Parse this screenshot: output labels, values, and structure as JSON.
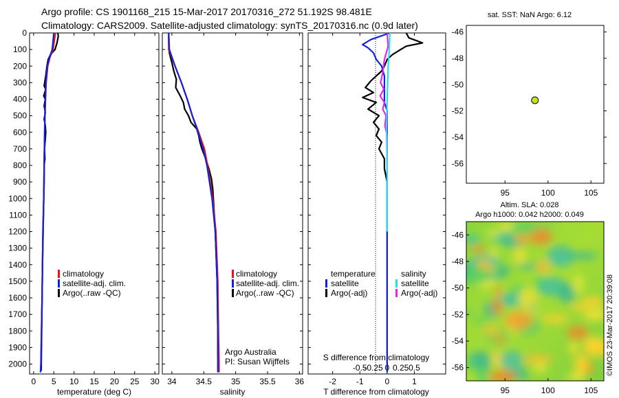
{
  "header": {
    "line1": "Argo profile: CS 1901168_215 15-Mar-2017 20170316_272 51.192S 98.481E",
    "line2": "Climatology: CARS2009. Satellite-adjusted climatology: synTS_20170316.nc (0.9d later)"
  },
  "credit": "©IMOS 23-Mar-2017 20:39:08",
  "colors": {
    "climatology": "#ee1111",
    "satellite": "#1122dd",
    "argo": "#000000",
    "sal_satellite": "#22e0e8",
    "sal_argo": "#ee22ee",
    "marker_fill": "#c8e020"
  },
  "chart_data": [
    {
      "type": "line",
      "name": "temperature-profile",
      "xlabel": "temperature (deg C)",
      "ylabel": "",
      "xlim": [
        -1,
        31
      ],
      "ylim": [
        2060,
        0
      ],
      "xticks": [
        0,
        5,
        10,
        15,
        20,
        25,
        30
      ],
      "yticks": [
        0,
        100,
        200,
        300,
        400,
        500,
        600,
        700,
        800,
        900,
        1000,
        1100,
        1200,
        1300,
        1400,
        1500,
        1600,
        1700,
        1800,
        1900,
        2000
      ],
      "legend": [
        "climatology",
        "satellite-adj. clim.",
        "Argo(..raw -QC)"
      ],
      "series": [
        {
          "name": "climatology",
          "depth": [
            0,
            100,
            150,
            200,
            300,
            500,
            800,
            1000,
            1400,
            1600,
            2000,
            2050
          ],
          "values": [
            5.4,
            4.8,
            4.0,
            3.5,
            3.1,
            2.8,
            2.6,
            2.5,
            2.2,
            2.1,
            1.8,
            1.7
          ]
        },
        {
          "name": "satellite-adj. clim.",
          "depth": [
            0,
            100,
            150,
            200,
            300,
            500,
            800,
            1000,
            1400,
            1600,
            2000,
            2050
          ],
          "values": [
            5.0,
            4.6,
            3.9,
            3.4,
            3.0,
            2.8,
            2.6,
            2.5,
            2.2,
            2.1,
            1.8,
            1.7
          ]
        },
        {
          "name": "Argo(..raw -QC)",
          "depth": [
            0,
            20,
            60,
            100,
            130,
            160,
            200,
            260,
            320,
            340,
            380,
            400,
            440,
            480,
            520,
            560,
            600,
            640,
            700,
            760,
            800,
            900,
            1000,
            1200,
            1400,
            1600,
            2000,
            2040
          ],
          "values": [
            6.0,
            6.1,
            5.8,
            5.3,
            4.2,
            3.6,
            3.3,
            3.0,
            2.6,
            3.0,
            2.5,
            2.9,
            2.6,
            2.9,
            2.6,
            2.9,
            3.0,
            2.9,
            2.7,
            2.8,
            2.6,
            2.6,
            2.5,
            2.3,
            2.2,
            2.1,
            1.9,
            1.9
          ]
        }
      ]
    },
    {
      "type": "line",
      "name": "salinity-profile",
      "xlabel": "salinity",
      "xlim": [
        33.85,
        36.05
      ],
      "ylim": [
        2060,
        0
      ],
      "xticks": [
        34,
        34.5,
        35,
        35.5,
        36
      ],
      "xticklabels": [
        "34",
        "34.5",
        "35",
        "35.5",
        "36"
      ],
      "legend": [
        "climatology",
        "satellite-adj. clim.",
        "Argo(..raw -QC)"
      ],
      "annotation": [
        "Argo Australia",
        "PI: Susan Wijffels"
      ],
      "series": [
        {
          "name": "climatology",
          "depth": [
            0,
            100,
            200,
            300,
            400,
            500,
            600,
            700,
            800,
            1000,
            1200,
            1500,
            1800,
            2000,
            2050
          ],
          "values": [
            33.95,
            33.95,
            34.05,
            34.15,
            34.24,
            34.32,
            34.42,
            34.51,
            34.56,
            34.64,
            34.69,
            34.72,
            34.73,
            34.74,
            34.74
          ]
        },
        {
          "name": "satellite-adj. clim.",
          "depth": [
            0,
            100,
            200,
            300,
            400,
            500,
            600,
            700,
            800,
            1000,
            1200,
            1500,
            1800,
            2000,
            2050
          ],
          "values": [
            33.95,
            33.96,
            34.05,
            34.15,
            34.24,
            34.32,
            34.41,
            34.49,
            34.55,
            34.63,
            34.68,
            34.71,
            34.72,
            34.72,
            34.72
          ]
        },
        {
          "name": "Argo(..raw -QC)",
          "depth": [
            0,
            60,
            120,
            180,
            230,
            280,
            330,
            380,
            420,
            460,
            500,
            540,
            580,
            620,
            660,
            700,
            760,
            820,
            880,
            940,
            1000,
            1200,
            1500,
            1800,
            1900,
            1960
          ],
          "values": [
            33.95,
            33.95,
            33.96,
            34.0,
            34.03,
            34.07,
            34.06,
            34.13,
            34.18,
            34.2,
            34.26,
            34.3,
            34.39,
            34.42,
            34.44,
            34.47,
            34.53,
            34.58,
            34.62,
            34.64,
            34.65,
            34.68,
            34.71,
            34.72,
            34.72,
            34.72
          ]
        }
      ]
    },
    {
      "type": "line",
      "name": "difference-profile",
      "xlabel": "T difference from climatology",
      "top_label": "S difference from climatology",
      "xlim": [
        -2.9,
        2.15
      ],
      "ylim": [
        2060,
        0
      ],
      "xticks": [
        -2,
        -1,
        0,
        1
      ],
      "secondary_xticks": [
        -0.5,
        -0.25,
        0,
        0.25,
        0.5
      ],
      "secondary_xticklabels": [
        "-0.5",
        "-0.25",
        "0",
        "0.25",
        "0.5"
      ],
      "legend_headers": [
        "temperature",
        "salinity"
      ],
      "legend": [
        "satellite",
        "Argo(-adj)",
        "satellite",
        "Argo(-adj)"
      ],
      "series": [
        {
          "name": "temperature satellite",
          "depth": [
            0,
            40,
            70,
            90,
            120,
            160,
            200,
            260,
            300,
            360,
            420,
            470,
            500,
            560,
            640,
            700,
            800,
            1000,
            1200,
            1500,
            1800,
            2000,
            2050
          ],
          "values": [
            0.1,
            -0.6,
            -0.9,
            -0.7,
            -0.5,
            -0.4,
            -0.2,
            -0.1,
            -0.1,
            -0.1,
            -0.1,
            0.0,
            0.0,
            0.0,
            0.0,
            0.0,
            0.0,
            0.0,
            0.0,
            0.0,
            0.0,
            0.0,
            0.0
          ]
        },
        {
          "name": "temperature Argo(-adj)",
          "depth": [
            0,
            30,
            60,
            80,
            100,
            130,
            160,
            200,
            230,
            260,
            290,
            330,
            360,
            390,
            420,
            460,
            500,
            540,
            580,
            620,
            660,
            700,
            760,
            820,
            900,
            1000,
            1200,
            1500,
            1800,
            2000
          ],
          "values": [
            0.7,
            0.8,
            1.3,
            0.7,
            0.5,
            0.2,
            0.0,
            -0.1,
            -0.2,
            -0.4,
            -0.6,
            -0.8,
            -0.5,
            -0.9,
            -0.4,
            -0.7,
            -0.3,
            -0.5,
            -0.3,
            -0.4,
            -0.2,
            -0.3,
            -0.1,
            -0.1,
            0.0,
            0.0,
            0.0,
            0.0,
            0.0,
            0.0
          ]
        },
        {
          "name": "salinity satellite",
          "depth": [
            0,
            100,
            200,
            400,
            600,
            800,
            1000,
            1200
          ],
          "values": [
            0.05,
            0.04,
            0.02,
            0.0,
            -0.01,
            0.0,
            0.0,
            0.0
          ]
        },
        {
          "name": "salinity Argo(-adj)",
          "depth": [
            0,
            80,
            160,
            240,
            300,
            340,
            380,
            420,
            460,
            500,
            560,
            620,
            700,
            800
          ],
          "values": [
            0.0,
            0.02,
            -0.05,
            -0.08,
            -0.12,
            -0.06,
            -0.13,
            -0.05,
            -0.08,
            -0.02,
            -0.04,
            0.0,
            0.0,
            0.0
          ]
        }
      ]
    },
    {
      "type": "scatter",
      "name": "position-map",
      "title": "sat. SST: NaN Argo: 6.12",
      "xlim": [
        90.5,
        106.5
      ],
      "ylim": [
        -57.5,
        -45.5
      ],
      "xticks": [
        95,
        100,
        105
      ],
      "yticks": [
        -46,
        -48,
        -50,
        -52,
        -54,
        -56
      ],
      "points": [
        {
          "x": 98.481,
          "y": -51.192
        }
      ]
    },
    {
      "type": "heatmap",
      "name": "sla-map",
      "title_line1": "Altim. SLA: 0.028",
      "title_line2": "Argo h1000: 0.042 h2000: 0.049",
      "xlim": [
        90.5,
        106.5
      ],
      "ylim": [
        -57,
        -45
      ],
      "xticks": [
        95,
        100,
        105
      ],
      "yticks": [
        -46,
        -48,
        -50,
        -52,
        -54,
        -56
      ]
    }
  ]
}
